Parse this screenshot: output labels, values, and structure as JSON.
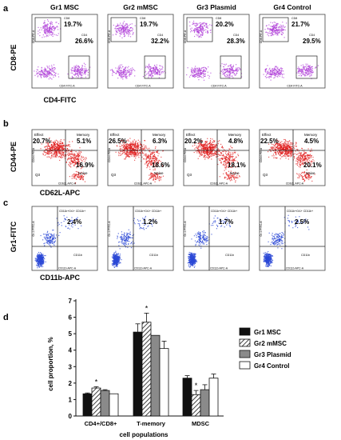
{
  "panels": {
    "a": {
      "letter": "a",
      "ylabel": "CD8-PE",
      "xlabel": "CD4-FITC",
      "groups": [
        {
          "name": "Gr1 MSC",
          "cd8": "19.7%",
          "cd4": "26.6%",
          "inner_y": "CD8-PE-A",
          "inner_x": "CD4 FITC-A",
          "q_left": "CD8",
          "q_right": "CD4"
        },
        {
          "name": "Gr2 mMSC",
          "cd8": "19.7%",
          "cd4": "32.2%",
          "inner_y": "CD8-PE-A",
          "inner_x": "CD4 FITC-A",
          "q_left": "CD8",
          "q_right": "CD4"
        },
        {
          "name": "Gr3 Plasmid",
          "cd8": "20.2%",
          "cd4": "28.3%",
          "inner_y": "CD8-PE-A",
          "inner_x": "CD4 FITC-A",
          "q_left": "CD8",
          "q_right": "CD4"
        },
        {
          "name": "Gr4 Control",
          "cd8": "21.7%",
          "cd4": "29.5%",
          "inner_y": "CD8-PE-A",
          "inner_x": "CD4 FITC-A",
          "q_left": "CD8",
          "q_right": "CD4"
        }
      ]
    },
    "b": {
      "letter": "b",
      "ylabel": "CD44-PE",
      "xlabel": "CD62L-APC",
      "groups": [
        {
          "effect": "20.7%",
          "memory": "5.1%",
          "naive": "16.9%",
          "lab_effect": "Effect",
          "lab_memory": "Memory",
          "lab_naive": "Naive",
          "lab_q3": "Q3",
          "inner_y": "CD44 PE-A",
          "inner_x": "CD62L APC-A"
        },
        {
          "effect": "26.5%",
          "memory": "6.3%",
          "naive": "18.6%",
          "lab_effect": "Effect",
          "lab_memory": "Memory",
          "lab_naive": "Naive",
          "lab_q3": "Q3",
          "inner_y": "CD44 PE-A",
          "inner_x": "CD62L APC-A"
        },
        {
          "effect": "20.2%",
          "memory": "4.8%",
          "naive": "18.1%",
          "lab_effect": "Effect",
          "lab_memory": "Memory",
          "lab_naive": "Naive",
          "lab_q3": "Q3",
          "inner_y": "CD44 PE-A",
          "inner_x": "CD62L APC-A"
        },
        {
          "effect": "22.5%",
          "memory": "4.5%",
          "naive": "20.1%",
          "lab_effect": "Effect",
          "lab_memory": "Memory",
          "lab_naive": "Naive",
          "lab_q3": "Q3",
          "inner_y": "CD44 PE-A",
          "inner_x": "CD62L APC-A"
        }
      ]
    },
    "c": {
      "letter": "c",
      "ylabel": "Gr1-FITC",
      "xlabel": "CD11b-APC",
      "groups": [
        {
          "mdsc": "2.4%",
          "gate": "CD11b+Gr1+ CD11b+",
          "q_cd11b": "CD11b",
          "inner_y": "Gr-1 FITC-A",
          "inner_x": "CD11b APC-A"
        },
        {
          "mdsc": "1.2%",
          "gate": "CD11b+Gr1+ CD11b+",
          "q_cd11b": "CD11b",
          "inner_y": "Gr-1 FITC-A",
          "inner_x": "CD11b APC-A"
        },
        {
          "mdsc": "1.7%",
          "gate": "CD11b+Gr1+ CD11b+",
          "q_cd11b": "CD11b",
          "inner_y": "Gr-1 FITC-A",
          "inner_x": "CD11b APC-A"
        },
        {
          "mdsc": "2.5%",
          "gate": "CD11b+Gr1+ CD11b+",
          "q_cd11b": "CD11b",
          "inner_y": "Gr-1 FITC-A",
          "inner_x": "CD11b APC-A"
        }
      ]
    },
    "d": {
      "letter": "d"
    }
  },
  "colors": {
    "panel_a_dots": "#b040d8",
    "panel_b_dots": "#e01818",
    "panel_c_dots": "#2b48d6",
    "bar_gr1": "#111111",
    "bar_gr2": "hatched",
    "bar_gr3": "#8a8a8a",
    "bar_gr4": "#ffffff"
  },
  "chart_data": {
    "type": "bar",
    "categories": [
      "CD4+/CD8+",
      "T-memory",
      "MDSC"
    ],
    "series": [
      {
        "name": "Gr1 MSC",
        "values": [
          1.35,
          5.1,
          2.3
        ],
        "errors": [
          0.05,
          0.5,
          0.15
        ]
      },
      {
        "name": "Gr2 mMSC",
        "values": [
          1.7,
          5.7,
          1.3
        ],
        "errors": [
          0.08,
          0.55,
          0.25
        ]
      },
      {
        "name": "Gr3 Plasmid",
        "values": [
          1.55,
          4.9,
          1.6
        ],
        "errors": [
          0.05,
          0.0,
          0.3
        ]
      },
      {
        "name": "Gr4 Control",
        "values": [
          1.35,
          4.1,
          2.3
        ],
        "errors": [
          0.0,
          0.45,
          0.25
        ]
      }
    ],
    "significance": [
      "*",
      "*",
      "*"
    ],
    "xlabel": "cell populations",
    "ylabel": "cell proportion, %",
    "yticks": [
      "0",
      "1",
      "2",
      "3",
      "4",
      "5",
      "6",
      "7"
    ],
    "ylim": [
      0,
      7
    ],
    "legend_position": "right"
  }
}
